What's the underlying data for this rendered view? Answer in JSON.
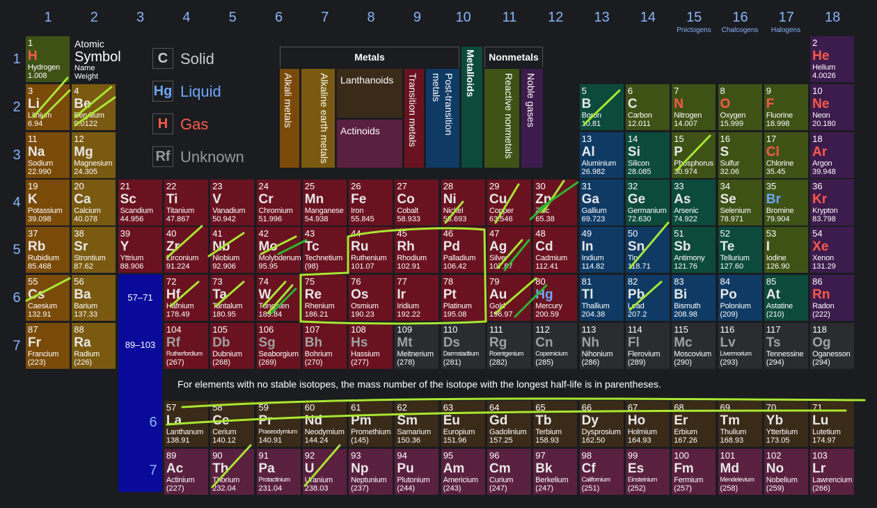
{
  "groups": [
    "1",
    "2",
    "3",
    "4",
    "5",
    "6",
    "7",
    "8",
    "9",
    "10",
    "11",
    "12",
    "13",
    "14",
    "15",
    "16",
    "17",
    "18"
  ],
  "group_labels": {
    "g15": "Pnictogens",
    "g16": "Chalcogens",
    "g17": "Halogens"
  },
  "periods": [
    "1",
    "2",
    "3",
    "4",
    "5",
    "6",
    "7"
  ],
  "key": {
    "number": "Atomic",
    "symbol": "Symbol",
    "name": "Name",
    "weight": "Weight"
  },
  "legend": {
    "solid": {
      "box": "C",
      "label": "Solid"
    },
    "liquid": {
      "box": "Hg",
      "label": "Liquid"
    },
    "gas": {
      "box": "H",
      "label": "Gas"
    },
    "unknown": {
      "box": "Rf",
      "label": "Unknown"
    }
  },
  "categories": {
    "metals": "Metals",
    "nonmetals": "Nonmetals",
    "metalloids": "Metalloids",
    "alkali": "Alkali metals",
    "alkaline": "Alkaline earth metals",
    "lanthanoids": "Lanthanoids",
    "actinoids": "Actinoids",
    "transition": "Transition metals",
    "post_transition": "Post-transition metals",
    "reactive": "Reactive nonmetals",
    "noble": "Noble gases"
  },
  "fblock_refs": {
    "lan": "57–71",
    "act": "89–103"
  },
  "fblock_periods": [
    "6",
    "7"
  ],
  "note": "For elements with no stable isotopes, the mass number of the isotope with the longest half-life is in parentheses.",
  "colors": {
    "alkali": "#7a4a08",
    "alkaline": "#7a5a10",
    "transition": "#6a1220",
    "post": "#0e3a64",
    "metalloid": "#0c4a3c",
    "reactive": "#3e5216",
    "noble": "#3c1c4c",
    "lanthanoid": "#3a2a18",
    "actinoid": "#5a2040",
    "unknown": "#2a2c30",
    "hydrogen": "#3e5216"
  },
  "elements": [
    {
      "n": "1",
      "s": "H",
      "name": "Hydrogen",
      "w": "1.008",
      "c": "reactive",
      "st": "gas",
      "g": 1,
      "p": 1
    },
    {
      "n": "2",
      "s": "He",
      "name": "Helium",
      "w": "4.0026",
      "c": "noble",
      "st": "gas",
      "g": 18,
      "p": 1
    },
    {
      "n": "3",
      "s": "Li",
      "name": "Lithium",
      "w": "6.94",
      "c": "alkali",
      "g": 1,
      "p": 2
    },
    {
      "n": "4",
      "s": "Be",
      "name": "Beryllium",
      "w": "9.0122",
      "c": "alkaline",
      "g": 2,
      "p": 2
    },
    {
      "n": "5",
      "s": "B",
      "name": "Boron",
      "w": "10.81",
      "c": "metalloid",
      "g": 13,
      "p": 2
    },
    {
      "n": "6",
      "s": "C",
      "name": "Carbon",
      "w": "12.011",
      "c": "reactive",
      "g": 14,
      "p": 2
    },
    {
      "n": "7",
      "s": "N",
      "name": "Nitrogen",
      "w": "14.007",
      "c": "reactive",
      "st": "gas",
      "g": 15,
      "p": 2
    },
    {
      "n": "8",
      "s": "O",
      "name": "Oxygen",
      "w": "15.999",
      "c": "reactive",
      "st": "gas",
      "g": 16,
      "p": 2
    },
    {
      "n": "9",
      "s": "F",
      "name": "Fluorine",
      "w": "18.998",
      "c": "reactive",
      "st": "gas",
      "g": 17,
      "p": 2
    },
    {
      "n": "10",
      "s": "Ne",
      "name": "Neon",
      "w": "20.180",
      "c": "noble",
      "st": "gas",
      "g": 18,
      "p": 2
    },
    {
      "n": "11",
      "s": "Na",
      "name": "Sodium",
      "w": "22.990",
      "c": "alkali",
      "g": 1,
      "p": 3
    },
    {
      "n": "12",
      "s": "Mg",
      "name": "Magnesium",
      "w": "24.305",
      "c": "alkaline",
      "g": 2,
      "p": 3
    },
    {
      "n": "13",
      "s": "Al",
      "name": "Aluminium",
      "w": "26.982",
      "c": "post",
      "g": 13,
      "p": 3
    },
    {
      "n": "14",
      "s": "Si",
      "name": "Silicon",
      "w": "28.085",
      "c": "metalloid",
      "g": 14,
      "p": 3
    },
    {
      "n": "15",
      "s": "P",
      "name": "Phosphorus",
      "w": "30.974",
      "c": "reactive",
      "g": 15,
      "p": 3
    },
    {
      "n": "16",
      "s": "S",
      "name": "Sulfur",
      "w": "32.06",
      "c": "reactive",
      "g": 16,
      "p": 3
    },
    {
      "n": "17",
      "s": "Cl",
      "name": "Chlorine",
      "w": "35.45",
      "c": "reactive",
      "st": "gas",
      "g": 17,
      "p": 3
    },
    {
      "n": "18",
      "s": "Ar",
      "name": "Argon",
      "w": "39.948",
      "c": "noble",
      "st": "gas",
      "g": 18,
      "p": 3
    },
    {
      "n": "19",
      "s": "K",
      "name": "Potassium",
      "w": "39.098",
      "c": "alkali",
      "g": 1,
      "p": 4
    },
    {
      "n": "20",
      "s": "Ca",
      "name": "Calcium",
      "w": "40.078",
      "c": "alkaline",
      "g": 2,
      "p": 4
    },
    {
      "n": "21",
      "s": "Sc",
      "name": "Scandium",
      "w": "44.956",
      "c": "transition",
      "g": 3,
      "p": 4
    },
    {
      "n": "22",
      "s": "Ti",
      "name": "Titanium",
      "w": "47.867",
      "c": "transition",
      "g": 4,
      "p": 4
    },
    {
      "n": "23",
      "s": "V",
      "name": "Vanadium",
      "w": "50.942",
      "c": "transition",
      "g": 5,
      "p": 4
    },
    {
      "n": "24",
      "s": "Cr",
      "name": "Chromium",
      "w": "51.996",
      "c": "transition",
      "g": 6,
      "p": 4
    },
    {
      "n": "25",
      "s": "Mn",
      "name": "Manganese",
      "w": "54.938",
      "c": "transition",
      "g": 7,
      "p": 4
    },
    {
      "n": "26",
      "s": "Fe",
      "name": "Iron",
      "w": "55.845",
      "c": "transition",
      "g": 8,
      "p": 4
    },
    {
      "n": "27",
      "s": "Co",
      "name": "Cobalt",
      "w": "58.933",
      "c": "transition",
      "g": 9,
      "p": 4
    },
    {
      "n": "28",
      "s": "Ni",
      "name": "Nickel",
      "w": "58.693",
      "c": "transition",
      "g": 10,
      "p": 4
    },
    {
      "n": "29",
      "s": "Cu",
      "name": "Copper",
      "w": "63.546",
      "c": "transition",
      "g": 11,
      "p": 4
    },
    {
      "n": "30",
      "s": "Zn",
      "name": "Zinc",
      "w": "65.38",
      "c": "transition",
      "g": 12,
      "p": 4
    },
    {
      "n": "31",
      "s": "Ga",
      "name": "Gallium",
      "w": "69.723",
      "c": "post",
      "g": 13,
      "p": 4
    },
    {
      "n": "32",
      "s": "Ge",
      "name": "Germanium",
      "w": "72.630",
      "c": "metalloid",
      "g": 14,
      "p": 4
    },
    {
      "n": "33",
      "s": "As",
      "name": "Arsenic",
      "w": "74.922",
      "c": "metalloid",
      "g": 15,
      "p": 4
    },
    {
      "n": "34",
      "s": "Se",
      "name": "Selenium",
      "w": "78.971",
      "c": "reactive",
      "g": 16,
      "p": 4
    },
    {
      "n": "35",
      "s": "Br",
      "name": "Bromine",
      "w": "79.904",
      "c": "reactive",
      "st": "liq",
      "g": 17,
      "p": 4
    },
    {
      "n": "36",
      "s": "Kr",
      "name": "Krypton",
      "w": "83.798",
      "c": "noble",
      "st": "gas",
      "g": 18,
      "p": 4
    },
    {
      "n": "37",
      "s": "Rb",
      "name": "Rubidium",
      "w": "85.468",
      "c": "alkali",
      "g": 1,
      "p": 5
    },
    {
      "n": "38",
      "s": "Sr",
      "name": "Strontium",
      "w": "87.62",
      "c": "alkaline",
      "g": 2,
      "p": 5
    },
    {
      "n": "39",
      "s": "Y",
      "name": "Yttrium",
      "w": "88.906",
      "c": "transition",
      "g": 3,
      "p": 5
    },
    {
      "n": "40",
      "s": "Zr",
      "name": "Zirconium",
      "w": "91.224",
      "c": "transition",
      "g": 4,
      "p": 5
    },
    {
      "n": "41",
      "s": "Nb",
      "name": "Niobium",
      "w": "92.906",
      "c": "transition",
      "g": 5,
      "p": 5
    },
    {
      "n": "42",
      "s": "Mo",
      "name": "Molybdenum",
      "w": "95.95",
      "c": "transition",
      "g": 6,
      "p": 5
    },
    {
      "n": "43",
      "s": "Tc",
      "name": "Technetium",
      "w": "(98)",
      "c": "transition",
      "g": 7,
      "p": 5
    },
    {
      "n": "44",
      "s": "Ru",
      "name": "Ruthenium",
      "w": "101.07",
      "c": "transition",
      "g": 8,
      "p": 5
    },
    {
      "n": "45",
      "s": "Rh",
      "name": "Rhodium",
      "w": "102.91",
      "c": "transition",
      "g": 9,
      "p": 5
    },
    {
      "n": "46",
      "s": "Pd",
      "name": "Palladium",
      "w": "106.42",
      "c": "transition",
      "g": 10,
      "p": 5
    },
    {
      "n": "47",
      "s": "Ag",
      "name": "Silver",
      "w": "107.87",
      "c": "transition",
      "g": 11,
      "p": 5
    },
    {
      "n": "48",
      "s": "Cd",
      "name": "Cadmium",
      "w": "112.41",
      "c": "transition",
      "g": 12,
      "p": 5
    },
    {
      "n": "49",
      "s": "In",
      "name": "Indium",
      "w": "114.82",
      "c": "post",
      "g": 13,
      "p": 5
    },
    {
      "n": "50",
      "s": "Sn",
      "name": "Tin",
      "w": "118.71",
      "c": "post",
      "g": 14,
      "p": 5
    },
    {
      "n": "51",
      "s": "Sb",
      "name": "Antimony",
      "w": "121.76",
      "c": "metalloid",
      "g": 15,
      "p": 5
    },
    {
      "n": "52",
      "s": "Te",
      "name": "Tellurium",
      "w": "127.60",
      "c": "metalloid",
      "g": 16,
      "p": 5
    },
    {
      "n": "53",
      "s": "I",
      "name": "Iodine",
      "w": "126.90",
      "c": "reactive",
      "g": 17,
      "p": 5
    },
    {
      "n": "54",
      "s": "Xe",
      "name": "Xenon",
      "w": "131.29",
      "c": "noble",
      "st": "gas",
      "g": 18,
      "p": 5
    },
    {
      "n": "55",
      "s": "Cs",
      "name": "Caesium",
      "w": "132.91",
      "c": "alkali",
      "g": 1,
      "p": 6
    },
    {
      "n": "56",
      "s": "Ba",
      "name": "Barium",
      "w": "137.33",
      "c": "alkaline",
      "g": 2,
      "p": 6
    },
    {
      "n": "72",
      "s": "Hf",
      "name": "Hafnium",
      "w": "178.49",
      "c": "transition",
      "g": 4,
      "p": 6
    },
    {
      "n": "73",
      "s": "Ta",
      "name": "Tantalum",
      "w": "180.95",
      "c": "transition",
      "g": 5,
      "p": 6
    },
    {
      "n": "74",
      "s": "W",
      "name": "Tungsten",
      "w": "183.84",
      "c": "transition",
      "g": 6,
      "p": 6
    },
    {
      "n": "75",
      "s": "Re",
      "name": "Rhenium",
      "w": "186.21",
      "c": "transition",
      "g": 7,
      "p": 6
    },
    {
      "n": "76",
      "s": "Os",
      "name": "Osmium",
      "w": "190.23",
      "c": "transition",
      "g": 8,
      "p": 6
    },
    {
      "n": "77",
      "s": "Ir",
      "name": "Iridium",
      "w": "192.22",
      "c": "transition",
      "g": 9,
      "p": 6
    },
    {
      "n": "78",
      "s": "Pt",
      "name": "Platinum",
      "w": "195.08",
      "c": "transition",
      "g": 10,
      "p": 6
    },
    {
      "n": "79",
      "s": "Au",
      "name": "Gold",
      "w": "196.97",
      "c": "transition",
      "g": 11,
      "p": 6
    },
    {
      "n": "80",
      "s": "Hg",
      "name": "Mercury",
      "w": "200.59",
      "c": "transition",
      "st": "liq",
      "g": 12,
      "p": 6
    },
    {
      "n": "81",
      "s": "Tl",
      "name": "Thallium",
      "w": "204.38",
      "c": "post",
      "g": 13,
      "p": 6
    },
    {
      "n": "82",
      "s": "Pb",
      "name": "Lead",
      "w": "207.2",
      "c": "post",
      "g": 14,
      "p": 6
    },
    {
      "n": "83",
      "s": "Bi",
      "name": "Bismuth",
      "w": "208.98",
      "c": "post",
      "g": 15,
      "p": 6
    },
    {
      "n": "84",
      "s": "Po",
      "name": "Polonium",
      "w": "(209)",
      "c": "post",
      "g": 16,
      "p": 6
    },
    {
      "n": "85",
      "s": "At",
      "name": "Astatine",
      "w": "(210)",
      "c": "metalloid",
      "g": 17,
      "p": 6
    },
    {
      "n": "86",
      "s": "Rn",
      "name": "Radon",
      "w": "(222)",
      "c": "noble",
      "st": "gas",
      "g": 18,
      "p": 6
    },
    {
      "n": "87",
      "s": "Fr",
      "name": "Francium",
      "w": "(223)",
      "c": "alkali",
      "g": 1,
      "p": 7
    },
    {
      "n": "88",
      "s": "Ra",
      "name": "Radium",
      "w": "(226)",
      "c": "alkaline",
      "g": 2,
      "p": 7
    },
    {
      "n": "104",
      "s": "Rf",
      "name": "Rutherfordium",
      "w": "(267)",
      "c": "transition",
      "st": "unk",
      "g": 4,
      "p": 7
    },
    {
      "n": "105",
      "s": "Db",
      "name": "Dubnium",
      "w": "(268)",
      "c": "transition",
      "st": "unk",
      "g": 5,
      "p": 7
    },
    {
      "n": "106",
      "s": "Sg",
      "name": "Seaborgium",
      "w": "(269)",
      "c": "transition",
      "st": "unk",
      "g": 6,
      "p": 7
    },
    {
      "n": "107",
      "s": "Bh",
      "name": "Bohrium",
      "w": "(270)",
      "c": "transition",
      "st": "unk",
      "g": 7,
      "p": 7
    },
    {
      "n": "108",
      "s": "Hs",
      "name": "Hassium",
      "w": "(277)",
      "c": "transition",
      "st": "unk",
      "g": 8,
      "p": 7
    },
    {
      "n": "109",
      "s": "Mt",
      "name": "Meitnerium",
      "w": "(278)",
      "c": "unknown",
      "st": "unk",
      "g": 9,
      "p": 7
    },
    {
      "n": "110",
      "s": "Ds",
      "name": "Darmstadtium",
      "w": "(281)",
      "c": "unknown",
      "st": "unk",
      "g": 10,
      "p": 7
    },
    {
      "n": "111",
      "s": "Rg",
      "name": "Roentgenium",
      "w": "(282)",
      "c": "unknown",
      "st": "unk",
      "g": 11,
      "p": 7
    },
    {
      "n": "112",
      "s": "Cn",
      "name": "Copernicium",
      "w": "(285)",
      "c": "unknown",
      "st": "unk",
      "g": 12,
      "p": 7
    },
    {
      "n": "113",
      "s": "Nh",
      "name": "Nihonium",
      "w": "(286)",
      "c": "unknown",
      "st": "unk",
      "g": 13,
      "p": 7
    },
    {
      "n": "114",
      "s": "Fl",
      "name": "Flerovium",
      "w": "(289)",
      "c": "unknown",
      "st": "unk",
      "g": 14,
      "p": 7
    },
    {
      "n": "115",
      "s": "Mc",
      "name": "Moscovium",
      "w": "(290)",
      "c": "unknown",
      "st": "unk",
      "g": 15,
      "p": 7
    },
    {
      "n": "116",
      "s": "Lv",
      "name": "Livermorium",
      "w": "(293)",
      "c": "unknown",
      "st": "unk",
      "g": 16,
      "p": 7
    },
    {
      "n": "117",
      "s": "Ts",
      "name": "Tennessine",
      "w": "(294)",
      "c": "unknown",
      "st": "unk",
      "g": 17,
      "p": 7
    },
    {
      "n": "118",
      "s": "Og",
      "name": "Oganesson",
      "w": "(294)",
      "c": "unknown",
      "st": "unk",
      "g": 18,
      "p": 7
    },
    {
      "n": "57",
      "s": "La",
      "name": "Lanthanum",
      "w": "138.91",
      "c": "lanthanoid",
      "g": 4,
      "p": 8
    },
    {
      "n": "58",
      "s": "Ce",
      "name": "Cerium",
      "w": "140.12",
      "c": "lanthanoid",
      "g": 5,
      "p": 8
    },
    {
      "n": "59",
      "s": "Pr",
      "name": "Praseodymium",
      "w": "140.91",
      "c": "lanthanoid",
      "g": 6,
      "p": 8
    },
    {
      "n": "60",
      "s": "Nd",
      "name": "Neodymium",
      "w": "144.24",
      "c": "lanthanoid",
      "g": 7,
      "p": 8
    },
    {
      "n": "61",
      "s": "Pm",
      "name": "Promethium",
      "w": "(145)",
      "c": "lanthanoid",
      "g": 8,
      "p": 8
    },
    {
      "n": "62",
      "s": "Sm",
      "name": "Samarium",
      "w": "150.36",
      "c": "lanthanoid",
      "g": 9,
      "p": 8
    },
    {
      "n": "63",
      "s": "Eu",
      "name": "Europium",
      "w": "151.96",
      "c": "lanthanoid",
      "g": 10,
      "p": 8
    },
    {
      "n": "64",
      "s": "Gd",
      "name": "Gadolinium",
      "w": "157.25",
      "c": "lanthanoid",
      "g": 11,
      "p": 8
    },
    {
      "n": "65",
      "s": "Tb",
      "name": "Terbium",
      "w": "158.93",
      "c": "lanthanoid",
      "g": 12,
      "p": 8
    },
    {
      "n": "66",
      "s": "Dy",
      "name": "Dysprosium",
      "w": "162.50",
      "c": "lanthanoid",
      "g": 13,
      "p": 8
    },
    {
      "n": "67",
      "s": "Ho",
      "name": "Holmium",
      "w": "164.93",
      "c": "lanthanoid",
      "g": 14,
      "p": 8
    },
    {
      "n": "68",
      "s": "Er",
      "name": "Erbium",
      "w": "167.26",
      "c": "lanthanoid",
      "g": 15,
      "p": 8
    },
    {
      "n": "69",
      "s": "Tm",
      "name": "Thulium",
      "w": "168.93",
      "c": "lanthanoid",
      "g": 16,
      "p": 8
    },
    {
      "n": "70",
      "s": "Yb",
      "name": "Ytterbium",
      "w": "173.05",
      "c": "lanthanoid",
      "g": 17,
      "p": 8
    },
    {
      "n": "71",
      "s": "Lu",
      "name": "Lutetium",
      "w": "174.97",
      "c": "lanthanoid",
      "g": 18,
      "p": 8
    },
    {
      "n": "89",
      "s": "Ac",
      "name": "Actinium",
      "w": "(227)",
      "c": "actinoid",
      "g": 4,
      "p": 9
    },
    {
      "n": "90",
      "s": "Th",
      "name": "Thorium",
      "w": "232.04",
      "c": "actinoid",
      "g": 5,
      "p": 9
    },
    {
      "n": "91",
      "s": "Pa",
      "name": "Protactinium",
      "w": "231.04",
      "c": "actinoid",
      "g": 6,
      "p": 9
    },
    {
      "n": "92",
      "s": "U",
      "name": "Uranium",
      "w": "238.03",
      "c": "actinoid",
      "g": 7,
      "p": 9
    },
    {
      "n": "93",
      "s": "Np",
      "name": "Neptunium",
      "w": "(237)",
      "c": "actinoid",
      "g": 8,
      "p": 9
    },
    {
      "n": "94",
      "s": "Pu",
      "name": "Plutonium",
      "w": "(244)",
      "c": "actinoid",
      "g": 9,
      "p": 9
    },
    {
      "n": "95",
      "s": "Am",
      "name": "Americium",
      "w": "(243)",
      "c": "actinoid",
      "g": 10,
      "p": 9
    },
    {
      "n": "96",
      "s": "Cm",
      "name": "Curium",
      "w": "(247)",
      "c": "actinoid",
      "g": 11,
      "p": 9
    },
    {
      "n": "97",
      "s": "Bk",
      "name": "Berkelium",
      "w": "(247)",
      "c": "actinoid",
      "g": 12,
      "p": 9
    },
    {
      "n": "98",
      "s": "Cf",
      "name": "Californium",
      "w": "(251)",
      "c": "actinoid",
      "g": 13,
      "p": 9
    },
    {
      "n": "99",
      "s": "Es",
      "name": "Einsteinium",
      "w": "(252)",
      "c": "actinoid",
      "g": 14,
      "p": 9
    },
    {
      "n": "100",
      "s": "Fm",
      "name": "Fermium",
      "w": "(257)",
      "c": "actinoid",
      "g": 15,
      "p": 9
    },
    {
      "n": "101",
      "s": "Md",
      "name": "Mendelevium",
      "w": "(258)",
      "c": "actinoid",
      "g": 16,
      "p": 9
    },
    {
      "n": "102",
      "s": "No",
      "name": "Nobelium",
      "w": "(259)",
      "c": "actinoid",
      "g": 17,
      "p": 9
    },
    {
      "n": "103",
      "s": "Lr",
      "name": "Lawrencium",
      "w": "(266)",
      "c": "actinoid",
      "g": 18,
      "p": 9
    }
  ]
}
